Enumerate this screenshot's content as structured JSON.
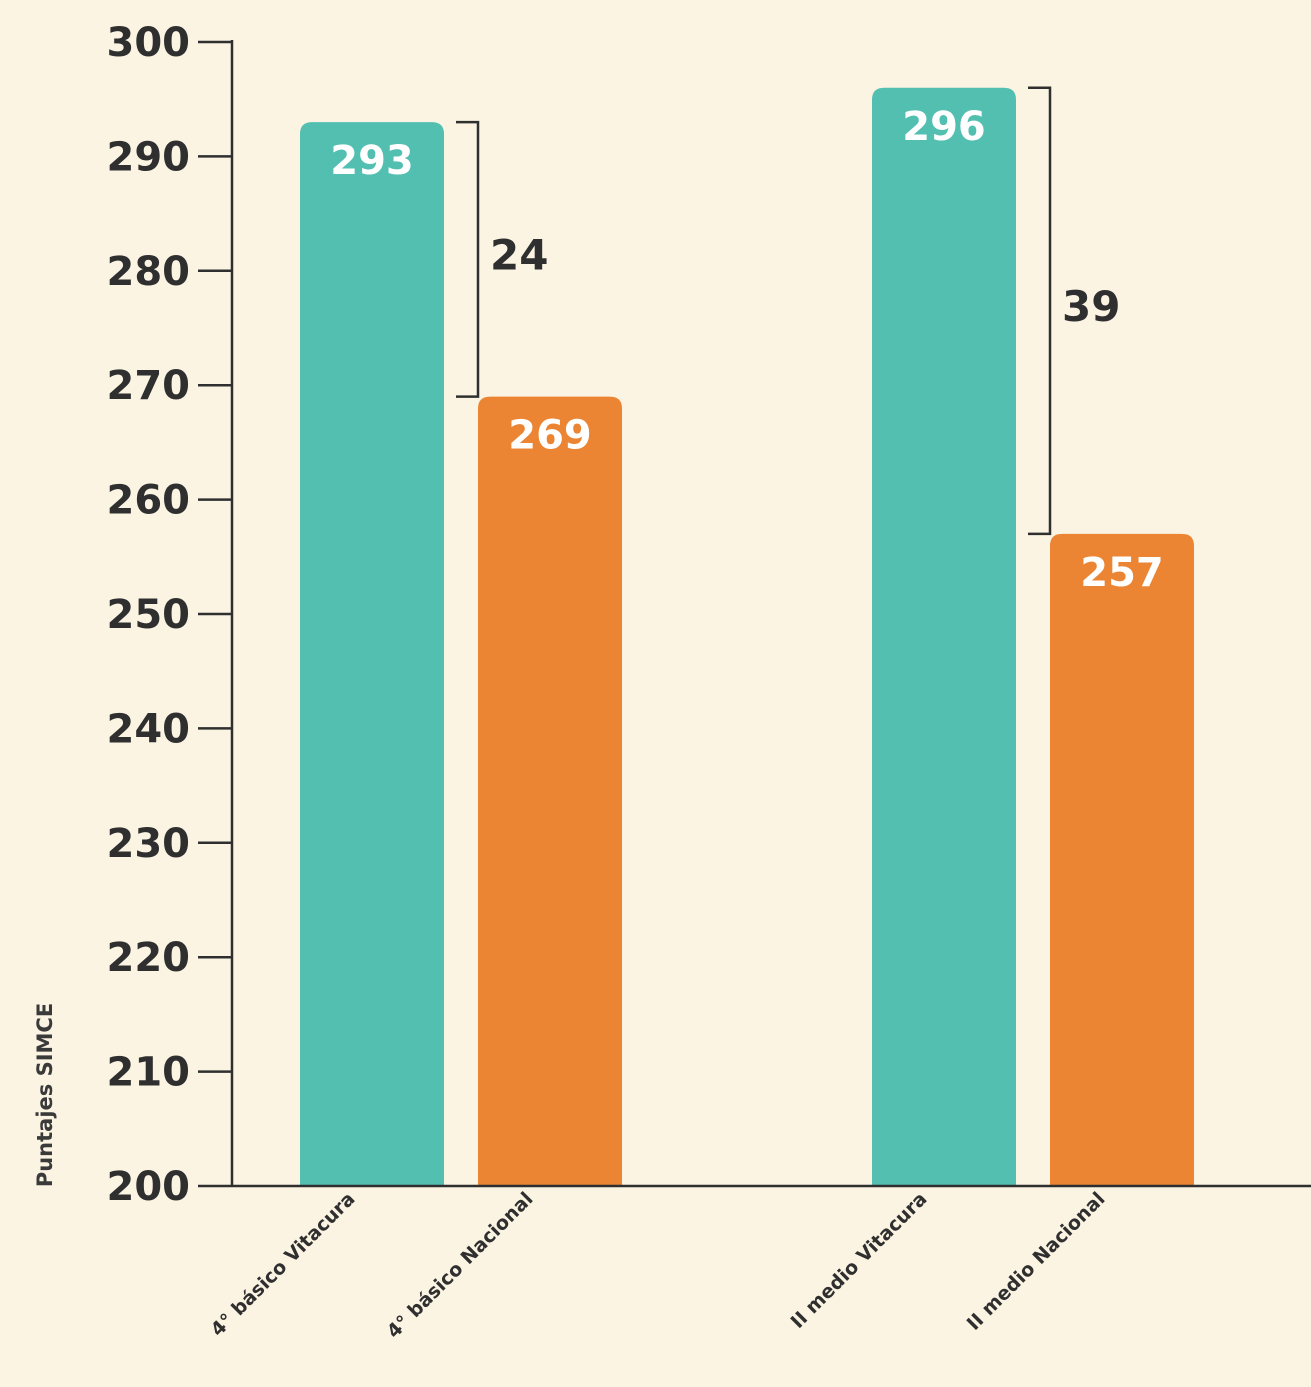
{
  "chart_data": {
    "type": "bar",
    "ylabel": "Puntajes SIMCE",
    "ylim": [
      200,
      300
    ],
    "yticks": [
      200,
      210,
      220,
      230,
      240,
      250,
      260,
      270,
      280,
      290,
      300
    ],
    "grid": false,
    "categories": [
      "4° básico Vitacura",
      "4° básico Nacional",
      "II medio Vitacura",
      "II medio Nacional"
    ],
    "values": [
      293,
      269,
      296,
      257
    ],
    "value_labels": [
      "293",
      "269",
      "296",
      "257"
    ],
    "colors": [
      "#52bfb1",
      "#eb8533",
      "#52bfb1",
      "#eb8533"
    ],
    "differences": [
      {
        "from": 0,
        "to": 1,
        "label": "24"
      },
      {
        "from": 2,
        "to": 3,
        "label": "39"
      }
    ],
    "colors_meta": {
      "axis": "#2f2f2f",
      "background": "#fbf4e3"
    }
  }
}
